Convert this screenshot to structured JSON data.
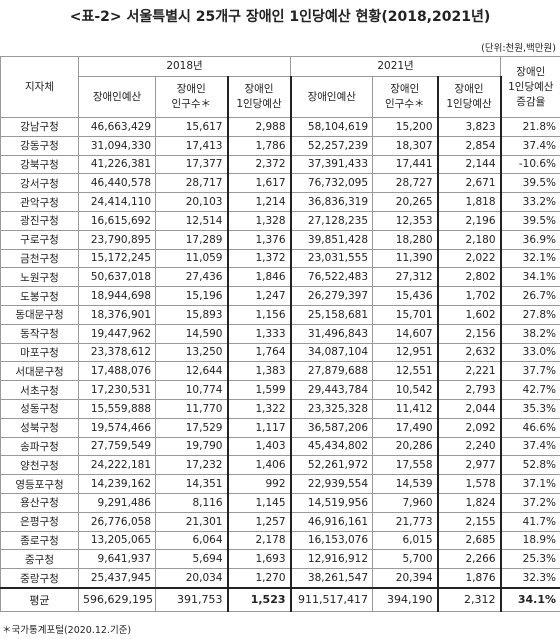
{
  "title": "<표-2> 서울특별시 25개구 장애인 1인당예산 현황(2018,2021년)",
  "unit": "(단위:천원,백만원)",
  "table": {
    "header": {
      "region": "지자체",
      "year1": "2018년",
      "year2": "2021년",
      "change": "장애인\n1인당예산\n증감율",
      "sub": [
        "장애인예산",
        "장애인\n인구수＊",
        "장애인\n1인당예산",
        "장애인예산",
        "장애인\n인구수＊",
        "장애인\n1인당예산"
      ]
    },
    "rows": [
      [
        "강남구청",
        "46,663,429",
        "15,617",
        "2,988",
        "58,104,619",
        "15,200",
        "3,823",
        "21.8%"
      ],
      [
        "강동구청",
        "31,094,330",
        "17,413",
        "1,786",
        "52,257,239",
        "18,307",
        "2,854",
        "37.4%"
      ],
      [
        "강북구청",
        "41,226,381",
        "17,377",
        "2,372",
        "37,391,433",
        "17,441",
        "2,144",
        "-10.6%"
      ],
      [
        "강서구청",
        "46,440,578",
        "28,717",
        "1,617",
        "76,732,095",
        "28,727",
        "2,671",
        "39.5%"
      ],
      [
        "관악구청",
        "24,414,110",
        "20,103",
        "1,214",
        "36,836,319",
        "20,265",
        "1,818",
        "33.2%"
      ],
      [
        "광진구청",
        "16,615,692",
        "12,514",
        "1,328",
        "27,128,235",
        "12,353",
        "2,196",
        "39.5%"
      ],
      [
        "구로구청",
        "23,790,895",
        "17,289",
        "1,376",
        "39,851,428",
        "18,280",
        "2,180",
        "36.9%"
      ],
      [
        "금천구청",
        "15,172,245",
        "11,059",
        "1,372",
        "23,031,555",
        "11,390",
        "2,022",
        "32.1%"
      ],
      [
        "노원구청",
        "50,637,018",
        "27,436",
        "1,846",
        "76,522,483",
        "27,312",
        "2,802",
        "34.1%"
      ],
      [
        "도봉구청",
        "18,944,698",
        "15,196",
        "1,247",
        "26,279,397",
        "15,436",
        "1,702",
        "26.7%"
      ],
      [
        "동대문구청",
        "18,376,901",
        "15,893",
        "1,156",
        "25,158,681",
        "15,701",
        "1,602",
        "27.8%"
      ],
      [
        "동작구청",
        "19,447,962",
        "14,590",
        "1,333",
        "31,496,843",
        "14,607",
        "2,156",
        "38.2%"
      ],
      [
        "마포구청",
        "23,378,612",
        "13,250",
        "1,764",
        "34,087,104",
        "12,951",
        "2,632",
        "33.0%"
      ],
      [
        "서대문구청",
        "17,488,076",
        "12,644",
        "1,383",
        "27,879,688",
        "12,551",
        "2,221",
        "37.7%"
      ],
      [
        "서초구청",
        "17,230,531",
        "10,774",
        "1,599",
        "29,443,784",
        "10,542",
        "2,793",
        "42.7%"
      ],
      [
        "성동구청",
        "15,559,888",
        "11,770",
        "1,322",
        "23,325,328",
        "11,412",
        "2,044",
        "35.3%"
      ],
      [
        "성북구청",
        "19,574,466",
        "17,529",
        "1,117",
        "36,587,206",
        "17,490",
        "2,092",
        "46.6%"
      ],
      [
        "송파구청",
        "27,759,549",
        "19,790",
        "1,403",
        "45,434,802",
        "20,286",
        "2,240",
        "37.4%"
      ],
      [
        "양천구청",
        "24,222,181",
        "17,232",
        "1,406",
        "52,261,972",
        "17,558",
        "2,977",
        "52.8%"
      ],
      [
        "영등포구청",
        "14,239,162",
        "14,351",
        "992",
        "22,939,554",
        "14,539",
        "1,578",
        "37.1%"
      ],
      [
        "용산구청",
        "9,291,486",
        "8,116",
        "1,145",
        "14,519,956",
        "7,960",
        "1,824",
        "37.2%"
      ],
      [
        "은평구청",
        "26,776,058",
        "21,301",
        "1,257",
        "46,916,161",
        "21,773",
        "2,155",
        "41.7%"
      ],
      [
        "종로구청",
        "13,205,065",
        "6,064",
        "2,178",
        "16,153,076",
        "6,015",
        "2,685",
        "18.9%"
      ],
      [
        "중구청",
        "9,641,937",
        "5,694",
        "1,693",
        "12,916,912",
        "5,700",
        "2,266",
        "25.3%"
      ],
      [
        "중랑구청",
        "25,437,945",
        "20,034",
        "1,270",
        "38,261,547",
        "20,394",
        "1,876",
        "32.3%"
      ]
    ],
    "average": [
      "평균",
      "596,629,195",
      "391,753",
      "1,523",
      "911,517,417",
      "394,190",
      "2,312",
      "34.1%"
    ]
  },
  "footnote": "＊국가통계포털(2020.12.기준)"
}
